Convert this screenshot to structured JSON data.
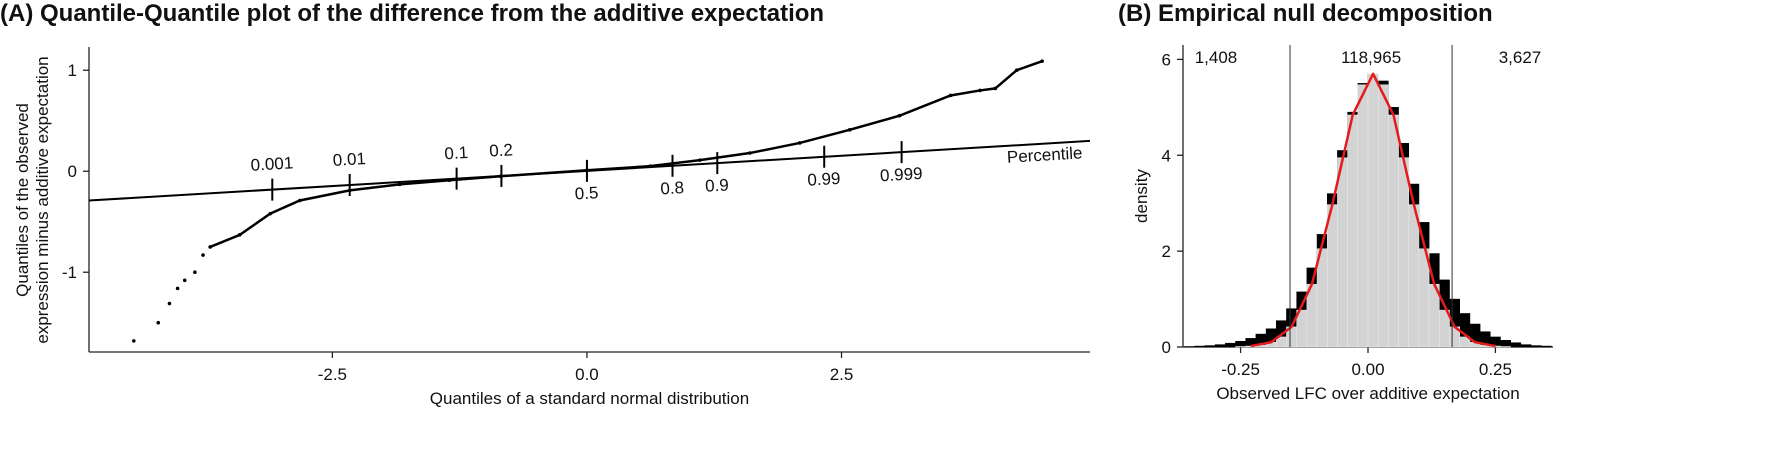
{
  "chart_data": [
    {
      "type": "qq",
      "title": "(A) Quantile-Quantile plot of the difference from the additive expectation",
      "x_label": "Quantiles of a standard normal distribution",
      "y_label": [
        "Quantiles of the observed",
        "expression minus additive expectation"
      ],
      "color": "#000000",
      "x": [
        -4.45,
        -4.21,
        -4.1,
        -4.02,
        -3.95,
        -3.85,
        -3.77,
        -3.7,
        -3.41,
        -3.11,
        -2.82,
        -2.33,
        -1.84,
        -1.35,
        -0.85,
        0,
        0.62,
        1.11,
        1.6,
        2.09,
        2.58,
        3.07,
        3.57,
        3.86,
        4.01,
        4.22,
        4.47
      ],
      "y": [
        -1.68,
        -1.5,
        -1.31,
        -1.16,
        -1.08,
        -1.0,
        -0.83,
        -0.75,
        -0.63,
        -0.42,
        -0.29,
        -0.19,
        -0.13,
        -0.09,
        -0.05,
        0.01,
        0.05,
        0.11,
        0.18,
        0.28,
        0.41,
        0.55,
        0.75,
        0.8,
        0.82,
        1.0,
        1.09
      ],
      "reference_line": {
        "name": "Percentile",
        "x": [
          -4.89,
          4.94
        ],
        "y": [
          -0.29,
          0.3
        ]
      },
      "percentiles": {
        "labels": [
          "0.001",
          "0.01",
          "0.1",
          "0.2",
          "0.5",
          "0.8",
          "0.9",
          "0.99",
          "0.999"
        ],
        "x": [
          -3.09,
          -2.33,
          -1.28,
          -0.84,
          0,
          0.84,
          1.28,
          2.33,
          3.09
        ]
      },
      "xlim": [
        -4.89,
        4.94
      ],
      "ylim": [
        -1.79,
        1.23
      ],
      "xticks": [
        {
          "value": -2.5,
          "label": "-2.5"
        },
        {
          "value": 0,
          "label": "0.0"
        },
        {
          "value": 2.5,
          "label": "2.5"
        }
      ],
      "yticks": [
        -1,
        0,
        1
      ]
    },
    {
      "type": "histogram",
      "title": "(B) Empirical null decomposition",
      "x_label": "Observed LFC over additive expectation",
      "y_label": "density",
      "bins": [
        -0.36,
        -0.34,
        -0.32,
        -0.3,
        -0.28,
        -0.26,
        -0.24,
        -0.22,
        -0.2,
        -0.18,
        -0.16,
        -0.14,
        -0.12,
        -0.1,
        -0.08,
        -0.06,
        -0.04,
        -0.02,
        0,
        0.02,
        0.04,
        0.06,
        0.08,
        0.1,
        0.12,
        0.14,
        0.16,
        0.18,
        0.2,
        0.22,
        0.24,
        0.26,
        0.28,
        0.3,
        0.32,
        0.34,
        0.36
      ],
      "series": [
        {
          "color": "#000000",
          "values": [
            0.01,
            0.02,
            0.03,
            0.05,
            0.08,
            0.12,
            0.18,
            0.27,
            0.38,
            0.55,
            0.8,
            1.15,
            1.65,
            2.35,
            3.2,
            4.1,
            4.9,
            5.5,
            5.7,
            5.55,
            5.0,
            4.25,
            3.4,
            2.6,
            1.95,
            1.4,
            1.0,
            0.7,
            0.48,
            0.32,
            0.21,
            0.14,
            0.09,
            0.05,
            0.03,
            0.02
          ]
        },
        {
          "color": "#d3d3d3",
          "values": [
            0,
            0,
            0,
            0,
            0,
            0.01,
            0.02,
            0.04,
            0.1,
            0.21,
            0.42,
            0.77,
            1.31,
            2.05,
            2.97,
            3.95,
            4.84,
            5.47,
            5.7,
            5.47,
            4.84,
            3.95,
            2.97,
            2.05,
            1.31,
            0.77,
            0.42,
            0.21,
            0.1,
            0.04,
            0.02,
            0.01,
            0,
            0,
            0,
            0
          ]
        }
      ],
      "fit": {
        "color": "#e41a1c",
        "x": [
          -0.23,
          -0.19,
          -0.15,
          -0.11,
          -0.07,
          -0.03,
          0.01,
          0.05,
          0.09,
          0.13,
          0.17,
          0.21,
          0.25
        ],
        "y": [
          0.02,
          0.1,
          0.42,
          1.31,
          2.97,
          4.84,
          5.7,
          4.84,
          2.97,
          1.31,
          0.42,
          0.1,
          0.02
        ]
      },
      "cutoffs": [
        -0.153,
        0.165
      ],
      "region_counts": [
        {
          "value": 1408,
          "label": "1,408"
        },
        {
          "value": 118965,
          "label": "118,965"
        },
        {
          "value": 3627,
          "label": "3,627"
        }
      ],
      "xlim": [
        -0.363,
        0.363
      ],
      "ylim": [
        0,
        6.3
      ],
      "xticks": [
        {
          "value": -0.25,
          "label": "-0.25"
        },
        {
          "value": 0,
          "label": "0.00"
        },
        {
          "value": 0.25,
          "label": "0.25"
        }
      ],
      "yticks": [
        0,
        2,
        4,
        6
      ]
    }
  ]
}
